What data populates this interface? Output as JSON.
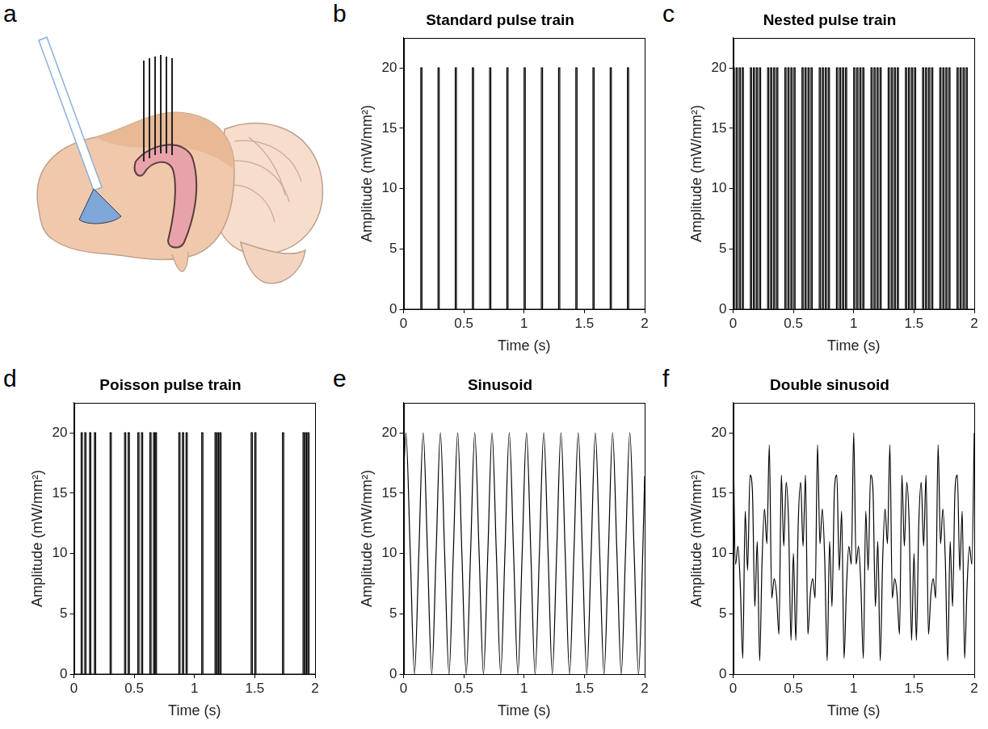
{
  "diagram": {
    "panel": "a"
  },
  "chart_data": [
    {
      "panel": "b",
      "type": "pulse_train",
      "title": "Standard pulse train",
      "x_label": "Time (s)",
      "y_label": "Amplitude (mW/mm²)",
      "x": [
        0.143,
        0.286,
        0.429,
        0.571,
        0.714,
        0.857,
        1,
        1.143,
        1.286,
        1.429,
        1.571,
        1.714,
        1.857
      ],
      "values": [
        20,
        20,
        20,
        20,
        20,
        20,
        20,
        20,
        20,
        20,
        20,
        20,
        20
      ],
      "pulse_width": 0.01,
      "color": "#000000",
      "xlim": [
        0,
        2
      ],
      "ylim": [
        0,
        22.5
      ],
      "xticks": [
        0,
        0.5,
        1,
        1.5,
        2
      ],
      "yticks": [
        0,
        5,
        10,
        15,
        20
      ],
      "grid": false
    },
    {
      "panel": "c",
      "type": "pulse_train",
      "title": "Nested pulse train",
      "x_label": "Time (s)",
      "y_label": "Amplitude (mW/mm²)",
      "x": [
        0,
        0.025,
        0.05,
        0.075,
        0.143,
        0.168,
        0.193,
        0.218,
        0.286,
        0.311,
        0.336,
        0.361,
        0.429,
        0.454,
        0.479,
        0.504,
        0.571,
        0.596,
        0.621,
        0.646,
        0.714,
        0.739,
        0.764,
        0.789,
        0.857,
        0.882,
        0.907,
        0.932,
        1,
        1.025,
        1.05,
        1.075,
        1.143,
        1.168,
        1.193,
        1.218,
        1.286,
        1.311,
        1.336,
        1.361,
        1.429,
        1.454,
        1.479,
        1.504,
        1.571,
        1.596,
        1.621,
        1.646,
        1.714,
        1.739,
        1.764,
        1.789,
        1.857,
        1.882,
        1.907,
        1.932
      ],
      "values": [
        20,
        20,
        20,
        20,
        20,
        20,
        20,
        20,
        20,
        20,
        20,
        20,
        20,
        20,
        20,
        20,
        20,
        20,
        20,
        20,
        20,
        20,
        20,
        20,
        20,
        20,
        20,
        20,
        20,
        20,
        20,
        20,
        20,
        20,
        20,
        20,
        20,
        20,
        20,
        20,
        20,
        20,
        20,
        20,
        20,
        20,
        20,
        20,
        20,
        20,
        20,
        20,
        20,
        20,
        20,
        20
      ],
      "pulse_width": 0.01,
      "color": "#000000",
      "xlim": [
        0,
        2
      ],
      "ylim": [
        0,
        22.5
      ],
      "xticks": [
        0,
        0.5,
        1,
        1.5,
        2
      ],
      "yticks": [
        0,
        5,
        10,
        15,
        20
      ],
      "grid": false
    },
    {
      "panel": "d",
      "type": "pulse_train",
      "title": "Poisson pulse train",
      "x_label": "Time (s)",
      "y_label": "Amplitude (mW/mm²)",
      "x": [
        0.06,
        0.09,
        0.13,
        0.17,
        0.3,
        0.42,
        0.45,
        0.53,
        0.56,
        0.63,
        0.66,
        0.675,
        0.87,
        0.9,
        0.93,
        1.06,
        1.17,
        1.19,
        1.21,
        1.47,
        1.5,
        1.73,
        1.9,
        1.92,
        1.94
      ],
      "values": [
        20,
        20,
        20,
        20,
        20,
        20,
        20,
        20,
        20,
        20,
        20,
        20,
        20,
        20,
        20,
        20,
        20,
        20,
        20,
        20,
        20,
        20,
        20,
        20,
        20
      ],
      "pulse_width": 0.01,
      "color": "#000000",
      "xlim": [
        0,
        2
      ],
      "ylim": [
        0,
        22.5
      ],
      "xticks": [
        0,
        0.5,
        1,
        1.5,
        2
      ],
      "yticks": [
        0,
        5,
        10,
        15,
        20
      ],
      "grid": false
    },
    {
      "panel": "e",
      "type": "line",
      "title": "Sinusoid",
      "x_label": "Time (s)",
      "y_label": "Amplitude (mW/mm²)",
      "x": [
        0,
        0.02,
        0.056,
        0.091,
        0.127,
        0.163,
        0.199,
        0.234,
        0.27,
        0.306,
        0.341,
        0.377,
        0.413,
        0.449,
        0.484,
        0.52,
        0.556,
        0.591,
        0.627,
        0.663,
        0.699,
        0.734,
        0.77,
        0.806,
        0.841,
        0.877,
        0.913,
        0.949,
        0.984,
        1.02,
        1.056,
        1.091,
        1.127,
        1.163,
        1.199,
        1.234,
        1.27,
        1.306,
        1.341,
        1.377,
        1.413,
        1.449,
        1.484,
        1.52,
        1.556,
        1.591,
        1.627,
        1.663,
        1.699,
        1.734,
        1.77,
        1.806,
        1.841,
        1.877,
        1.913,
        1.949,
        1.984,
        2
      ],
      "values": [
        16.4,
        20,
        10,
        0,
        10,
        20,
        10,
        0,
        10,
        20,
        10,
        0,
        10,
        20,
        10,
        0,
        10,
        20,
        10,
        0,
        10,
        20,
        10,
        0,
        10,
        20,
        10,
        0,
        10,
        20,
        10,
        0,
        10,
        20,
        10,
        0,
        10,
        20,
        10,
        0,
        10,
        20,
        10,
        0,
        10,
        20,
        10,
        0,
        10,
        20,
        10,
        0,
        10,
        20,
        10,
        0,
        10,
        16.4
      ],
      "color": "#000000",
      "xlim": [
        0,
        2
      ],
      "ylim": [
        0,
        22.5
      ],
      "xticks": [
        0,
        0.5,
        1,
        1.5,
        2
      ],
      "yticks": [
        0,
        5,
        10,
        15,
        20
      ],
      "grid": false
    },
    {
      "panel": "f",
      "type": "line",
      "title": "Double sinusoid",
      "x_label": "Time (s)",
      "y_label": "Amplitude (mW/mm²)",
      "x": [
        0,
        0.02,
        0.04,
        0.06,
        0.08,
        0.1,
        0.12,
        0.14,
        0.16,
        0.18,
        0.2,
        0.22,
        0.24,
        0.26,
        0.28,
        0.3,
        0.32,
        0.34,
        0.36,
        0.38,
        0.4,
        0.42,
        0.44,
        0.46,
        0.48,
        0.5,
        0.52,
        0.54,
        0.56,
        0.58,
        0.6,
        0.62,
        0.64,
        0.66,
        0.68,
        0.7,
        0.72,
        0.74,
        0.76,
        0.78,
        0.8,
        0.82,
        0.84,
        0.86,
        0.88,
        0.9,
        0.92,
        0.94,
        0.96,
        0.98,
        1,
        1.02,
        1.04,
        1.06,
        1.08,
        1.1,
        1.12,
        1.14,
        1.16,
        1.18,
        1.2,
        1.22,
        1.24,
        1.26,
        1.28,
        1.3,
        1.32,
        1.34,
        1.36,
        1.38,
        1.4,
        1.42,
        1.44,
        1.46,
        1.48,
        1.5,
        1.52,
        1.54,
        1.56,
        1.58,
        1.6,
        1.62,
        1.64,
        1.66,
        1.68,
        1.7,
        1.72,
        1.74,
        1.76,
        1.78,
        1.8,
        1.82,
        1.84,
        1.86,
        1.88,
        1.9,
        1.92,
        1.94,
        1.96,
        1.98,
        2
      ],
      "values": [
        20,
        9.1,
        10.6,
        7.2,
        1.3,
        13.5,
        8.6,
        16.5,
        15.2,
        5.6,
        11,
        1.1,
        9.4,
        13.7,
        10.8,
        19,
        6.3,
        7.9,
        6.6,
        3.3,
        16.5,
        10.6,
        15.9,
        12.5,
        2.8,
        10,
        2.8,
        12.5,
        15.9,
        10.6,
        16.5,
        3.3,
        6.6,
        7.9,
        6.3,
        19,
        10.8,
        13.7,
        9.4,
        1.1,
        11,
        5.6,
        15.2,
        16.5,
        8.6,
        13.5,
        1.3,
        7.2,
        10.6,
        9.1,
        20,
        9.1,
        10.6,
        7.2,
        1.3,
        13.5,
        8.6,
        16.5,
        15.2,
        5.6,
        11,
        1.1,
        9.4,
        13.7,
        10.8,
        19,
        6.3,
        7.9,
        6.6,
        3.3,
        16.5,
        10.6,
        15.9,
        12.5,
        2.8,
        10,
        2.8,
        12.5,
        15.9,
        10.6,
        16.5,
        3.3,
        6.6,
        7.9,
        6.3,
        19,
        10.8,
        13.7,
        9.4,
        1.1,
        11,
        5.6,
        15.2,
        16.5,
        8.6,
        13.5,
        1.3,
        7.2,
        10.6,
        9.1,
        20
      ],
      "color": "#000000",
      "xlim": [
        0,
        2
      ],
      "ylim": [
        0,
        22.5
      ],
      "xticks": [
        0,
        0.5,
        1,
        1.5,
        2
      ],
      "yticks": [
        0,
        5,
        10,
        15,
        20
      ],
      "grid": false
    }
  ]
}
